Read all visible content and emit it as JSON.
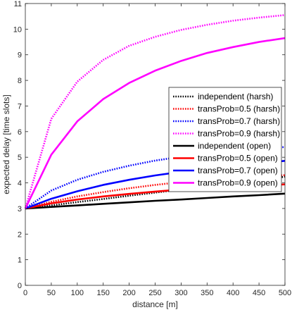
{
  "chart_data": {
    "type": "line",
    "xlabel": "distance [m]",
    "ylabel": "expected delay [time slots]",
    "xlim": [
      0,
      500
    ],
    "ylim": [
      0,
      11
    ],
    "xticks": [
      "0",
      "50",
      "100",
      "150",
      "200",
      "250",
      "300",
      "350",
      "400",
      "450",
      "500"
    ],
    "yticks": [
      "0",
      "1",
      "2",
      "3",
      "4",
      "5",
      "6",
      "7",
      "8",
      "9",
      "10",
      "11"
    ],
    "grid": false,
    "legend_position": "right",
    "x": [
      0,
      50,
      100,
      150,
      200,
      250,
      300,
      350,
      400,
      450,
      500
    ],
    "series": [
      {
        "name": "independent (harsh)",
        "color": "#000000",
        "style": "dotted",
        "values": [
          3.0,
          3.12,
          3.25,
          3.37,
          3.5,
          3.62,
          3.74,
          3.87,
          3.99,
          4.12,
          4.24
        ]
      },
      {
        "name": "transProb=0.5 (harsh)",
        "color": "#ff0000",
        "style": "dotted",
        "values": [
          3.0,
          3.26,
          3.47,
          3.64,
          3.79,
          3.92,
          4.03,
          4.12,
          4.19,
          4.25,
          4.3
        ]
      },
      {
        "name": "transProb=0.7 (harsh)",
        "color": "#0000ff",
        "style": "dotted",
        "values": [
          3.0,
          3.7,
          4.12,
          4.43,
          4.67,
          4.87,
          5.02,
          5.15,
          5.25,
          5.33,
          5.4
        ]
      },
      {
        "name": "transProb=0.9 (harsh)",
        "color": "#ff00ff",
        "style": "dotted",
        "values": [
          3.0,
          6.5,
          7.95,
          8.8,
          9.35,
          9.7,
          9.97,
          10.17,
          10.33,
          10.45,
          10.55
        ]
      },
      {
        "name": "independent (open)",
        "color": "#000000",
        "style": "solid",
        "values": [
          3.0,
          3.06,
          3.12,
          3.18,
          3.24,
          3.3,
          3.35,
          3.41,
          3.47,
          3.52,
          3.58
        ]
      },
      {
        "name": "transProb=0.5 (open)",
        "color": "#ff0000",
        "style": "solid",
        "values": [
          3.0,
          3.2,
          3.35,
          3.47,
          3.57,
          3.66,
          3.74,
          3.8,
          3.86,
          3.9,
          3.94
        ]
      },
      {
        "name": "transProb=0.7 (open)",
        "color": "#0000ff",
        "style": "solid",
        "values": [
          3.0,
          3.38,
          3.67,
          3.92,
          4.12,
          4.29,
          4.43,
          4.56,
          4.67,
          4.77,
          4.86
        ]
      },
      {
        "name": "transProb=0.9 (open)",
        "color": "#ff00ff",
        "style": "solid",
        "values": [
          3.0,
          5.1,
          6.4,
          7.27,
          7.9,
          8.38,
          8.76,
          9.07,
          9.3,
          9.5,
          9.65
        ]
      }
    ]
  }
}
